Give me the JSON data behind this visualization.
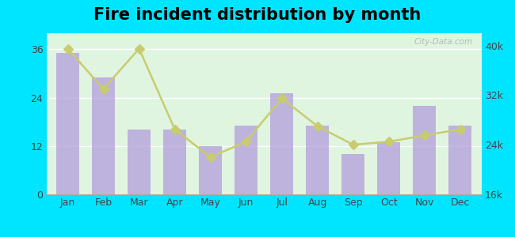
{
  "title": "Fire incident distribution by month",
  "months": [
    "Jan",
    "Feb",
    "Mar",
    "Apr",
    "May",
    "Jun",
    "Jul",
    "Aug",
    "Sep",
    "Oct",
    "Nov",
    "Dec"
  ],
  "bar_values": [
    35,
    29,
    16,
    16,
    12,
    17,
    25,
    17,
    10,
    13,
    22,
    17
  ],
  "line_values": [
    39500,
    33000,
    39500,
    26500,
    22000,
    24500,
    31500,
    27000,
    24000,
    24500,
    25500,
    26500
  ],
  "bar_color": "#b39ddb",
  "line_color": "#c8cc6e",
  "bar_alpha": 0.75,
  "ylim_left": [
    0,
    40
  ],
  "ylim_right": [
    16000,
    42000
  ],
  "yticks_left": [
    0,
    12,
    24,
    36
  ],
  "yticks_right": [
    16000,
    24000,
    32000,
    40000
  ],
  "ytick_labels_right": [
    "16k",
    "24k",
    "32k",
    "40k"
  ],
  "bg_color_top": "#f0faf0",
  "bg_color_bottom": "#e0f5e0",
  "outer_bg": "#00e5ff",
  "title_fontsize": 15,
  "axis_label_fontsize": 9,
  "legend_fontsize": 9,
  "watermark": "City-Data.com"
}
